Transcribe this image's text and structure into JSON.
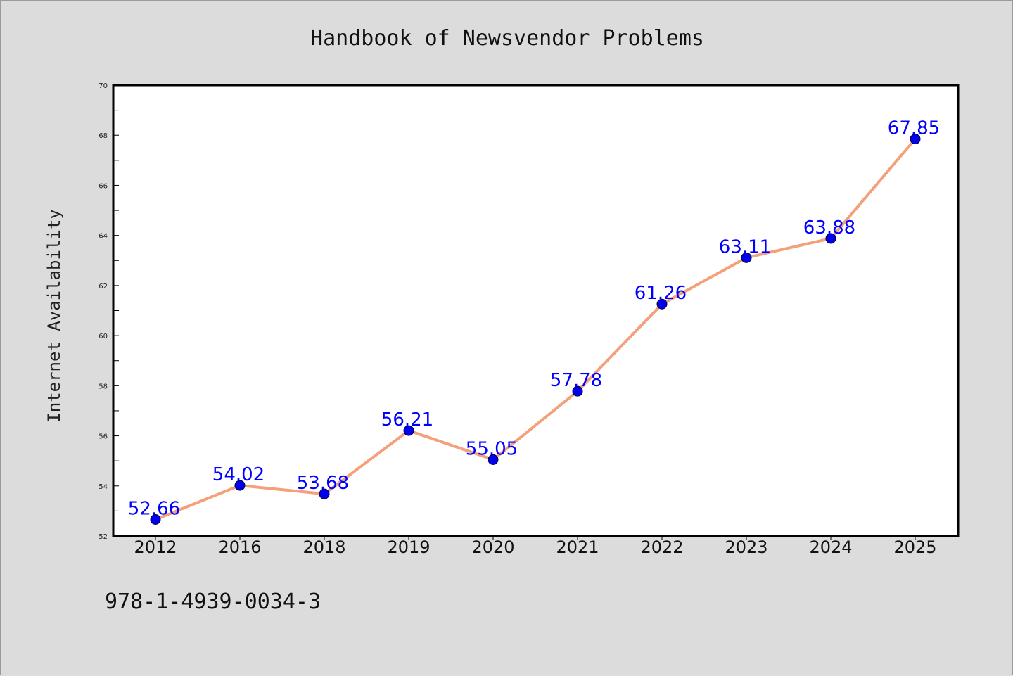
{
  "chart_data": {
    "type": "line",
    "title": "Handbook of Newsvendor Problems",
    "xlabel": "",
    "ylabel": "Internet Availability",
    "categories": [
      "2012",
      "2016",
      "2018",
      "2019",
      "2020",
      "2021",
      "2022",
      "2023",
      "2024",
      "2025"
    ],
    "values": [
      52.66,
      54.02,
      53.68,
      56.21,
      55.05,
      57.78,
      61.26,
      63.11,
      63.88,
      67.85
    ],
    "data_labels": [
      "52.66",
      "54.02",
      "53.68",
      "56.21",
      "55.05",
      "57.78",
      "61.26",
      "63.11",
      "63.88",
      "67.85"
    ],
    "ylim": [
      52,
      70
    ],
    "yticks": [
      "52",
      "54",
      "56",
      "58",
      "60",
      "62",
      "64",
      "66",
      "68",
      "70"
    ],
    "grid": false,
    "legend": "none",
    "colors": {
      "line": "#f4a07a",
      "marker": "#0000ee",
      "data_label": "#0000ff",
      "background": "#dcdcdc",
      "plot_background": "#ffffff"
    }
  },
  "footer": {
    "isbn": "978-1-4939-0034-3"
  }
}
